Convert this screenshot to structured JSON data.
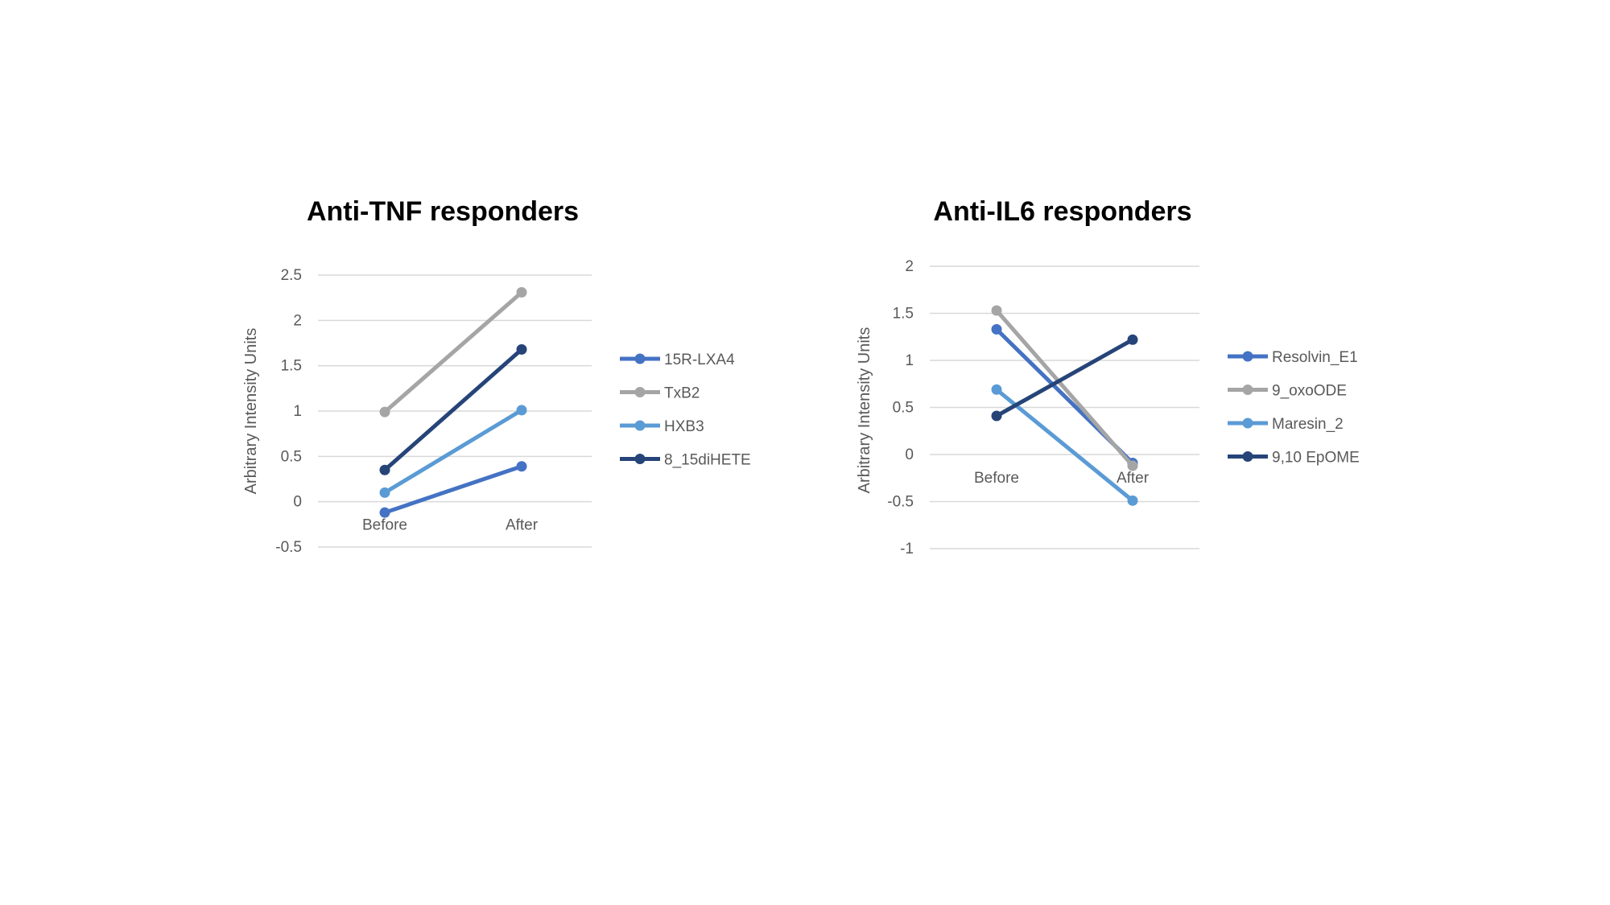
{
  "chart_data": [
    {
      "type": "line",
      "title": "Anti-TNF responders",
      "ylabel": "Arbitrary Intensity Units",
      "xlabel": "",
      "categories": [
        "Before",
        "After"
      ],
      "ylim": [
        -0.5,
        2.5
      ],
      "yticks": [
        "2.5",
        "2",
        "1.5",
        "1",
        "0.5",
        "0",
        "-0.5"
      ],
      "ytick_values": [
        2.5,
        2,
        1.5,
        1,
        0.5,
        0,
        -0.5
      ],
      "grid": true,
      "legend_position": "right",
      "series": [
        {
          "name": "15R-LXA4",
          "values": [
            -0.12,
            0.39
          ],
          "color": "#4472C4"
        },
        {
          "name": "TxB2",
          "values": [
            0.99,
            2.31
          ],
          "color": "#A5A5A5"
        },
        {
          "name": "HXB3",
          "values": [
            0.1,
            1.01
          ],
          "color": "#5B9BD5"
        },
        {
          "name": "8_15diHETE",
          "values": [
            0.35,
            1.68
          ],
          "color": "#264478"
        }
      ]
    },
    {
      "type": "line",
      "title": "Anti-IL6 responders",
      "ylabel": "Arbitrary Intensity Units",
      "xlabel": "",
      "categories": [
        "Before",
        "After"
      ],
      "ylim": [
        -1,
        2
      ],
      "yticks": [
        "2",
        "1.5",
        "1",
        "0.5",
        "0",
        "-0.5",
        "-1"
      ],
      "ytick_values": [
        2,
        1.5,
        1,
        0.5,
        0,
        -0.5,
        -1
      ],
      "grid": true,
      "legend_position": "right",
      "series": [
        {
          "name": "Resolvin_E1",
          "values": [
            1.33,
            -0.09
          ],
          "color": "#4472C4"
        },
        {
          "name": "9_oxoODE",
          "values": [
            1.53,
            -0.12
          ],
          "color": "#A5A5A5"
        },
        {
          "name": "Maresin_2",
          "values": [
            0.69,
            -0.49
          ],
          "color": "#5B9BD5"
        },
        {
          "name": "9,10 EpOME",
          "values": [
            0.41,
            1.22
          ],
          "color": "#264478"
        }
      ]
    }
  ]
}
